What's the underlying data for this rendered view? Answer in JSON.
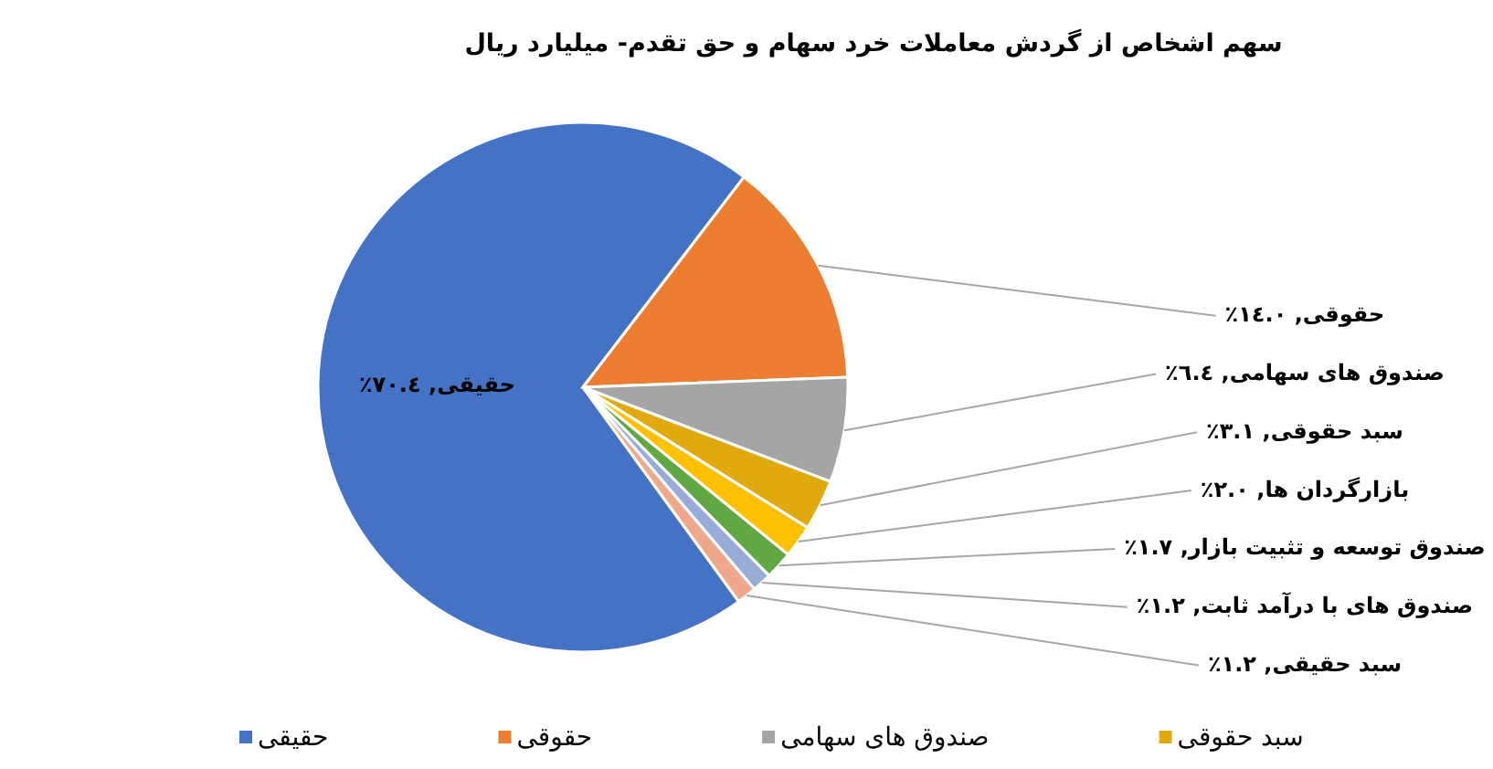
{
  "chart_data": {
    "type": "pie",
    "title": "سهم اشخاص از گردش معاملات خرد سهام و حق تقدم- میلیارد ریال",
    "categories": [
      "حقیقی",
      "حقوقی",
      "صندوق های سهامی",
      "سبد حقوقی",
      "بازارگردان ها",
      "صندوق توسعه و تثبیت بازار",
      "صندوق های با درآمد ثابت",
      "سبد حقیقی"
    ],
    "values": [
      70.4,
      14.0,
      6.4,
      3.1,
      2.0,
      1.7,
      1.2,
      1.2
    ],
    "colors": [
      "#4472c4",
      "#ed7d31",
      "#a5a5a5",
      "#e0a90d",
      "#ffc000",
      "#5fa843",
      "#98acd8",
      "#efa88c"
    ],
    "value_labels": [
      ", ٧٠.٤٪",
      ", ١٤.٠٪",
      ", ٦.٤٪",
      ", ٣.١٪",
      ", ٢.٠٪",
      ", ١.٧٪",
      ", ١.٢٪",
      ", ١.٢٪"
    ],
    "legend": "bottom"
  }
}
